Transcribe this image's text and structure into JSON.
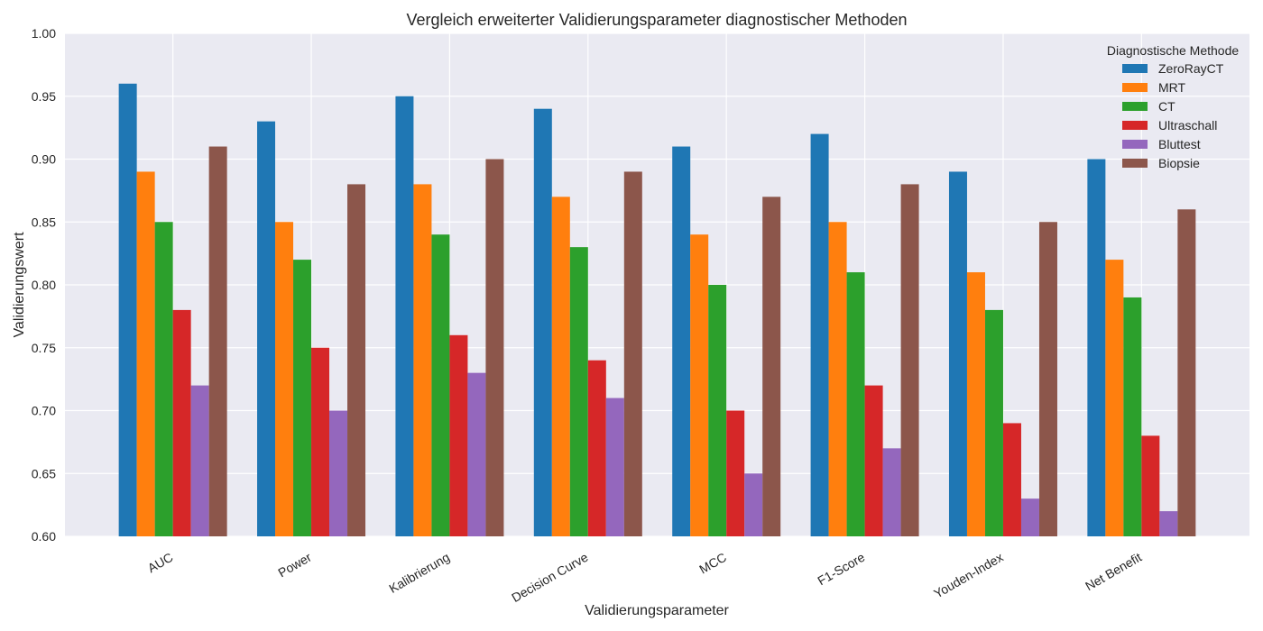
{
  "chart_data": {
    "type": "bar",
    "title": "Vergleich erweiterter Validierungsparameter diagnostischer Methoden",
    "xlabel": "Validierungsparameter",
    "ylabel": "Validierungswert",
    "ylim": [
      0.6,
      1.0
    ],
    "yticks": [
      "0.60",
      "0.65",
      "0.70",
      "0.75",
      "0.80",
      "0.85",
      "0.90",
      "0.95",
      "1.00"
    ],
    "grid": true,
    "legend_title": "Diagnostische Methode",
    "legend_position": "top-right",
    "categories": [
      "AUC",
      "Power",
      "Kalibrierung",
      "Decision Curve",
      "MCC",
      "F1-Score",
      "Youden-Index",
      "Net Benefit"
    ],
    "series": [
      {
        "name": "ZeroRayCT",
        "color": "#1f77b4",
        "values": [
          0.96,
          0.93,
          0.95,
          0.94,
          0.91,
          0.92,
          0.89,
          0.9
        ]
      },
      {
        "name": "MRT",
        "color": "#ff7f0e",
        "values": [
          0.89,
          0.85,
          0.88,
          0.87,
          0.84,
          0.85,
          0.81,
          0.82
        ]
      },
      {
        "name": "CT",
        "color": "#2ca02c",
        "values": [
          0.85,
          0.82,
          0.84,
          0.83,
          0.8,
          0.81,
          0.78,
          0.79
        ]
      },
      {
        "name": "Ultraschall",
        "color": "#d62728",
        "values": [
          0.78,
          0.75,
          0.76,
          0.74,
          0.7,
          0.72,
          0.69,
          0.68
        ]
      },
      {
        "name": "Bluttest",
        "color": "#9467bd",
        "values": [
          0.72,
          0.7,
          0.73,
          0.71,
          0.65,
          0.67,
          0.63,
          0.62
        ]
      },
      {
        "name": "Biopsie",
        "color": "#8c564b",
        "values": [
          0.91,
          0.88,
          0.9,
          0.89,
          0.87,
          0.88,
          0.85,
          0.86
        ]
      }
    ]
  }
}
